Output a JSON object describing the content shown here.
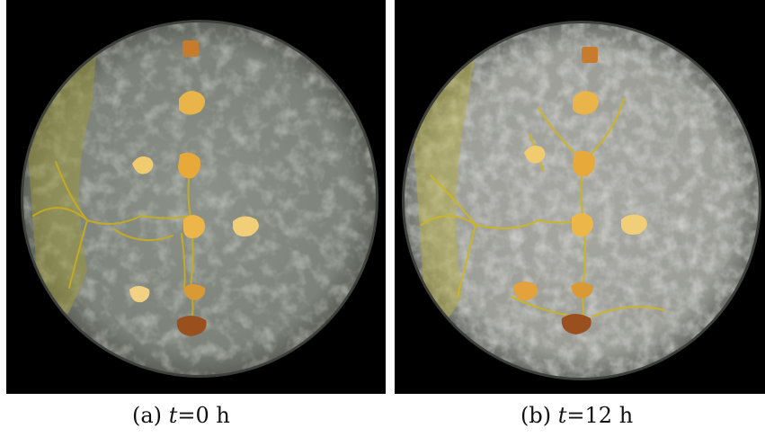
{
  "figure": {
    "panels": [
      {
        "id": "a",
        "caption": {
          "label": "(a)",
          "var": "t",
          "eq": "=",
          "value": "0",
          "unit": "h"
        }
      },
      {
        "id": "b",
        "caption": {
          "label": "(b)",
          "var": "t",
          "eq": "=",
          "value": "12",
          "unit": "h"
        }
      }
    ],
    "colors": {
      "background": "#000000",
      "agar": "#8f948b",
      "plasmodium": "#c9b21a",
      "oat_flake": "#e8b640",
      "dark_flake": "#9a4f1f"
    }
  }
}
